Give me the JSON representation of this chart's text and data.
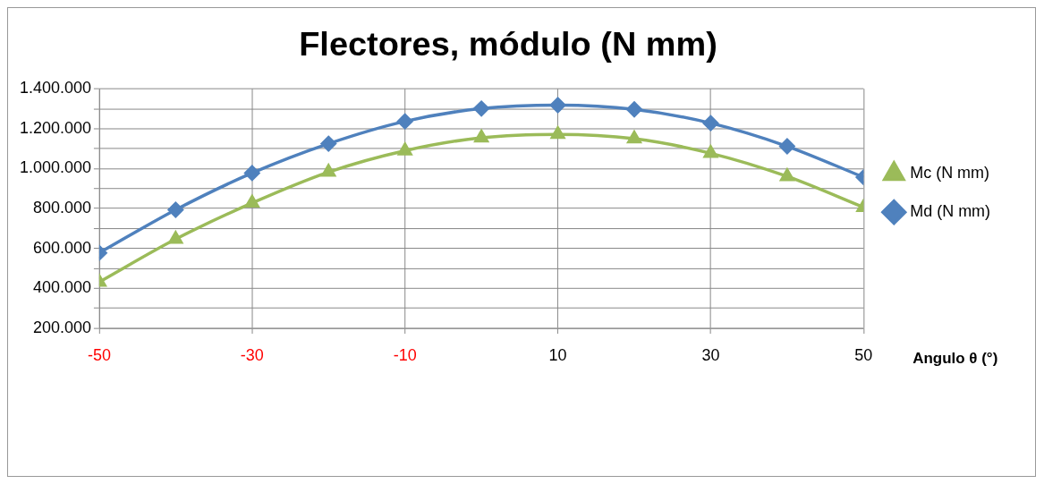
{
  "chart_data": {
    "type": "line",
    "title": "Flectores, módulo (N mm)",
    "xlabel": "Angulo θ (°)",
    "x": [
      -50,
      -40,
      -30,
      -20,
      -10,
      0,
      10,
      20,
      30,
      40,
      50
    ],
    "series": [
      {
        "name": "Mc (N mm)",
        "color": "#9bbb59",
        "marker": "triangle",
        "values": [
          432000,
          647000,
          828000,
          983000,
          1090000,
          1155000,
          1172000,
          1150000,
          1077000,
          961000,
          806000
        ]
      },
      {
        "name": "Md (N mm)",
        "color": "#4f81bd",
        "marker": "diamond",
        "values": [
          578000,
          794000,
          978000,
          1125000,
          1237000,
          1301000,
          1318000,
          1297000,
          1228000,
          1112000,
          957000
        ]
      }
    ],
    "xlim": [
      -50,
      50
    ],
    "xticks": [
      -50,
      -30,
      -10,
      10,
      30,
      50
    ],
    "ylim": [
      200000,
      1400000
    ],
    "yticks": [
      {
        "value": 200000,
        "label": "200.000"
      },
      {
        "value": 300000,
        "label": null
      },
      {
        "value": 400000,
        "label": "400.000"
      },
      {
        "value": 500000,
        "label": null
      },
      {
        "value": 600000,
        "label": "600.000"
      },
      {
        "value": 700000,
        "label": null
      },
      {
        "value": 800000,
        "label": "800.000"
      },
      {
        "value": 900000,
        "label": null
      },
      {
        "value": 1000000,
        "label": "1.000.000"
      },
      {
        "value": 1100000,
        "label": null
      },
      {
        "value": 1200000,
        "label": "1.200.000"
      },
      {
        "value": 1300000,
        "label": null
      },
      {
        "value": 1400000,
        "label": "1.400.000"
      }
    ],
    "grid": true,
    "legend": "right",
    "line_style": "solid"
  }
}
